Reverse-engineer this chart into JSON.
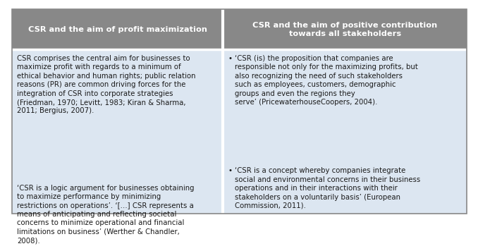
{
  "header_bg": "#888888",
  "header_text_color": "#ffffff",
  "body_bg": "#dce6f1",
  "body_text_color": "#1a1a1a",
  "divider_color": "#ffffff",
  "outer_border_color": "#888888",
  "fig_bg": "#ffffff",
  "header_left": "CSR and the aim of profit maximization",
  "header_right": "CSR and the aim of positive contribution\ntowards all stakeholders",
  "body_left_1": "CSR comprises the central aim for businesses to\nmaximize profit with regards to a minimum of\nethical behavior and human rights; public relation\nreasons (PR) are common driving forces for the\nintegration of CSR into corporate strategies\n(Friedman, 1970; Levitt, 1983; Kiran & Sharma,\n2011; Bergius, 2007).",
  "body_left_2": "‘CSR is a logic argument for businesses obtaining\nto maximize performance by minimizing\nrestrictions on operations’. ‘[…] CSR represents a\nmeans of anticipating and reflecting societal\nconcerns to minimize operational and financial\nlimitations on business’ (Werther & Chandler,\n2008).",
  "body_right_1": "‘CSR (is) the proposition that companies are\nresponsible not only for the maximizing profits, but\nalso recognizing the need of such stakeholders\nsuch as employees, customers, demographic\ngroups and even the regions they\nserve’ (PricewaterhouseCoopers, 2004).",
  "body_right_2": "‘CSR is a concept whereby companies integrate\nsocial and environmental concerns in their business\noperations and in their interactions with their\nstakeholders on a voluntarily basis’ (European\nCommission, 2011).",
  "font_size_header": 8.2,
  "font_size_body": 7.3,
  "bullet": "•"
}
